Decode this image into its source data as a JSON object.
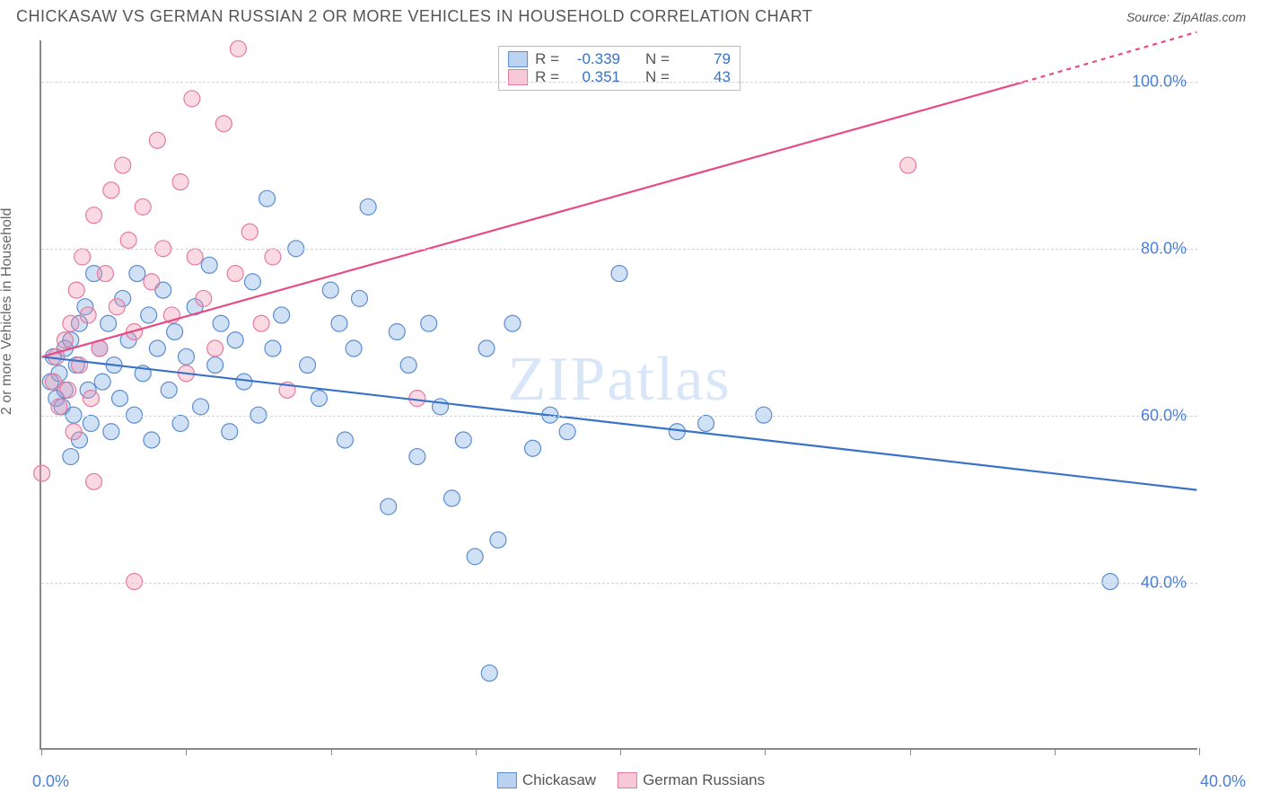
{
  "title": "CHICKASAW VS GERMAN RUSSIAN 2 OR MORE VEHICLES IN HOUSEHOLD CORRELATION CHART",
  "source": "Source: ZipAtlas.com",
  "y_axis_label": "2 or more Vehicles in Household",
  "watermark": "ZIPatlas",
  "chart": {
    "type": "scatter",
    "xlim": [
      0,
      40
    ],
    "ylim": [
      20,
      105
    ],
    "x_ticks": [
      0,
      5,
      10,
      15,
      20,
      25,
      30,
      35,
      40
    ],
    "x_tick_labels_shown": {
      "0": "0.0%",
      "40": "40.0%"
    },
    "y_grid": [
      40,
      60,
      80,
      100
    ],
    "y_tick_labels": [
      "40.0%",
      "60.0%",
      "80.0%",
      "100.0%"
    ],
    "background_color": "#ffffff",
    "grid_color": "#d4d4d4",
    "axis_color": "#888888",
    "blue_color": "#5a8dd0",
    "pink_color": "#e57aa0",
    "trend_blue_color": "#3972c6",
    "trend_pink_color": "#e74b86",
    "label_color": "#4a7fd6",
    "point_radius": 9,
    "series": [
      {
        "name": "Chickasaw",
        "color_key": "blue",
        "r_value": "-0.339",
        "n_value": "79",
        "trend": {
          "x1": 0,
          "y1": 67,
          "x2": 40,
          "y2": 51
        },
        "points": [
          [
            0.3,
            64
          ],
          [
            0.4,
            67
          ],
          [
            0.5,
            62
          ],
          [
            0.6,
            65
          ],
          [
            0.7,
            61
          ],
          [
            0.8,
            68
          ],
          [
            0.8,
            63
          ],
          [
            1,
            55
          ],
          [
            1,
            69
          ],
          [
            1.1,
            60
          ],
          [
            1.2,
            66
          ],
          [
            1.3,
            71
          ],
          [
            1.3,
            57
          ],
          [
            1.5,
            73
          ],
          [
            1.6,
            63
          ],
          [
            1.7,
            59
          ],
          [
            1.8,
            77
          ],
          [
            2,
            68
          ],
          [
            2.1,
            64
          ],
          [
            2.3,
            71
          ],
          [
            2.4,
            58
          ],
          [
            2.5,
            66
          ],
          [
            2.7,
            62
          ],
          [
            2.8,
            74
          ],
          [
            3,
            69
          ],
          [
            3.2,
            60
          ],
          [
            3.3,
            77
          ],
          [
            3.5,
            65
          ],
          [
            3.7,
            72
          ],
          [
            3.8,
            57
          ],
          [
            4,
            68
          ],
          [
            4.2,
            75
          ],
          [
            4.4,
            63
          ],
          [
            4.6,
            70
          ],
          [
            4.8,
            59
          ],
          [
            5,
            67
          ],
          [
            5.3,
            73
          ],
          [
            5.5,
            61
          ],
          [
            5.8,
            78
          ],
          [
            6,
            66
          ],
          [
            6.2,
            71
          ],
          [
            6.5,
            58
          ],
          [
            6.7,
            69
          ],
          [
            7,
            64
          ],
          [
            7.3,
            76
          ],
          [
            7.5,
            60
          ],
          [
            7.8,
            86
          ],
          [
            8,
            68
          ],
          [
            8.3,
            72
          ],
          [
            8.8,
            80
          ],
          [
            9.2,
            66
          ],
          [
            9.6,
            62
          ],
          [
            10,
            75
          ],
          [
            10.3,
            71
          ],
          [
            10.5,
            57
          ],
          [
            10.8,
            68
          ],
          [
            11,
            74
          ],
          [
            11.3,
            85
          ],
          [
            12,
            49
          ],
          [
            12.3,
            70
          ],
          [
            12.7,
            66
          ],
          [
            13,
            55
          ],
          [
            13.4,
            71
          ],
          [
            13.8,
            61
          ],
          [
            14.2,
            50
          ],
          [
            14.6,
            57
          ],
          [
            15,
            43
          ],
          [
            15.4,
            68
          ],
          [
            15.8,
            45
          ],
          [
            16.3,
            71
          ],
          [
            17,
            56
          ],
          [
            17.6,
            60
          ],
          [
            18.2,
            58
          ],
          [
            20,
            77
          ],
          [
            22,
            58
          ],
          [
            23,
            59
          ],
          [
            25,
            60
          ],
          [
            15.5,
            29
          ],
          [
            37,
            40
          ]
        ]
      },
      {
        "name": "German Russians",
        "color_key": "pink",
        "r_value": "0.351",
        "n_value": "43",
        "trend": {
          "x1": 0,
          "y1": 67,
          "x2": 34,
          "y2": 100,
          "x2_dash": 40,
          "y2_dash": 106
        },
        "points": [
          [
            0.4,
            64
          ],
          [
            0.5,
            67
          ],
          [
            0.6,
            61
          ],
          [
            0.8,
            69
          ],
          [
            0.9,
            63
          ],
          [
            1,
            71
          ],
          [
            1.1,
            58
          ],
          [
            1.2,
            75
          ],
          [
            1.3,
            66
          ],
          [
            1.4,
            79
          ],
          [
            1.6,
            72
          ],
          [
            1.7,
            62
          ],
          [
            1.8,
            84
          ],
          [
            2,
            68
          ],
          [
            2.2,
            77
          ],
          [
            2.4,
            87
          ],
          [
            2.6,
            73
          ],
          [
            2.8,
            90
          ],
          [
            3,
            81
          ],
          [
            3.2,
            70
          ],
          [
            3.5,
            85
          ],
          [
            3.8,
            76
          ],
          [
            4,
            93
          ],
          [
            4.2,
            80
          ],
          [
            4.5,
            72
          ],
          [
            4.8,
            88
          ],
          [
            5,
            65
          ],
          [
            5.3,
            79
          ],
          [
            5.6,
            74
          ],
          [
            6,
            68
          ],
          [
            6.3,
            95
          ],
          [
            6.7,
            77
          ],
          [
            6.8,
            104
          ],
          [
            7.2,
            82
          ],
          [
            7.6,
            71
          ],
          [
            8,
            79
          ],
          [
            8.5,
            63
          ],
          [
            5.2,
            98
          ],
          [
            3.2,
            40
          ],
          [
            1.8,
            52
          ],
          [
            13,
            62
          ],
          [
            0,
            53
          ],
          [
            30,
            90
          ]
        ]
      }
    ]
  },
  "stats_box": {
    "rows": [
      {
        "swatch": "blue",
        "r_label": "R =",
        "r": "-0.339",
        "n_label": "N =",
        "n": "79"
      },
      {
        "swatch": "pink",
        "r_label": "R =",
        "r": "0.351",
        "n_label": "N =",
        "n": "43"
      }
    ]
  },
  "legend": [
    {
      "swatch": "blue",
      "label": "Chickasaw"
    },
    {
      "swatch": "pink",
      "label": "German Russians"
    }
  ]
}
